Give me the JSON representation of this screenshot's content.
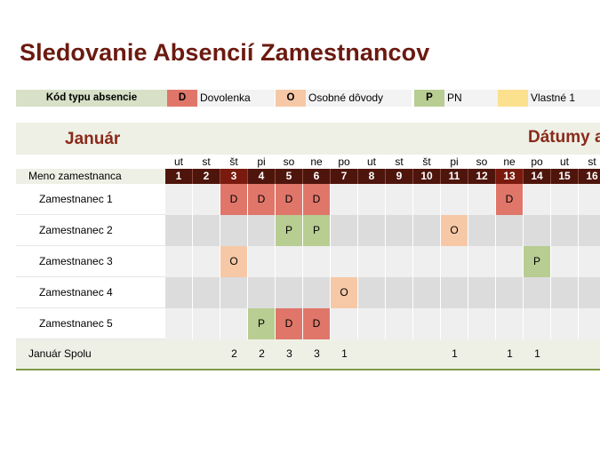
{
  "title": "Sledovanie Absencií Zamestnancov",
  "legend": {
    "label": "Kód typu absencie",
    "items": [
      {
        "code": "D",
        "desc": "Dovolenka",
        "color": "#e0766a"
      },
      {
        "code": "O",
        "desc": "Osobné dôvody",
        "color": "#f6c8a6"
      },
      {
        "code": "P",
        "desc": "PN",
        "color": "#b8cd92"
      },
      {
        "code": "",
        "desc": "Vlastné 1",
        "color": "#fbe08e"
      }
    ]
  },
  "month": "Január",
  "dates_title": "Dátumy a",
  "name_header": "Meno zamestnanca",
  "days": [
    {
      "name": "ut",
      "num": "1"
    },
    {
      "name": "st",
      "num": "2"
    },
    {
      "name": "št",
      "num": "3"
    },
    {
      "name": "pi",
      "num": "4"
    },
    {
      "name": "so",
      "num": "5"
    },
    {
      "name": "ne",
      "num": "6"
    },
    {
      "name": "po",
      "num": "7"
    },
    {
      "name": "ut",
      "num": "8"
    },
    {
      "name": "st",
      "num": "9"
    },
    {
      "name": "št",
      "num": "10"
    },
    {
      "name": "pi",
      "num": "11"
    },
    {
      "name": "so",
      "num": "12"
    },
    {
      "name": "ne",
      "num": "13"
    },
    {
      "name": "po",
      "num": "14"
    },
    {
      "name": "ut",
      "num": "15"
    },
    {
      "name": "st",
      "num": "16"
    }
  ],
  "employees": [
    {
      "name": "Zamestnanec 1",
      "marks": {
        "3": "D",
        "4": "D",
        "5": "D",
        "6": "D",
        "13": "D"
      }
    },
    {
      "name": "Zamestnanec 2",
      "marks": {
        "5": "P",
        "6": "P",
        "11": "O"
      }
    },
    {
      "name": "Zamestnanec 3",
      "marks": {
        "3": "O",
        "14": "P"
      }
    },
    {
      "name": "Zamestnanec 4",
      "marks": {
        "7": "O"
      }
    },
    {
      "name": "Zamestnanec 5",
      "marks": {
        "4": "P",
        "5": "D",
        "6": "D"
      }
    }
  ],
  "total": {
    "label": "Január Spolu",
    "values": {
      "3": "2",
      "4": "2",
      "5": "3",
      "6": "3",
      "7": "1",
      "11": "1",
      "13": "1",
      "14": "1"
    }
  },
  "colors": {
    "D": "#e0766a",
    "O": "#f6c8a6",
    "P": "#b8cd92",
    "weekday_bg": "#eeeeee",
    "weekend_bg": "#dcdcdc",
    "header_dark": "#4e150d",
    "accent": "#6b1a10"
  }
}
